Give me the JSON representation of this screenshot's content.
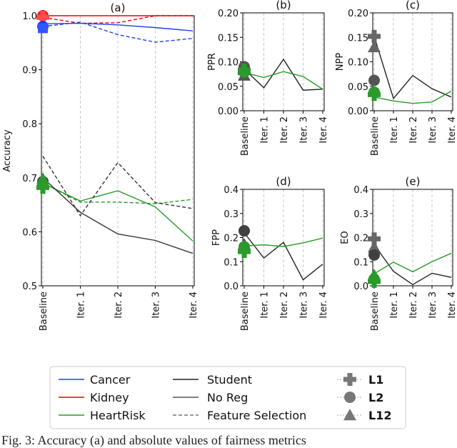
{
  "chart_data": [
    {
      "id": "a",
      "type": "line",
      "title": "(a)",
      "xlabel": "",
      "ylabel": "Accuracy",
      "categories": [
        "Baseline",
        "Iter. 1",
        "Iter. 2",
        "Iter. 3",
        "Iter. 4"
      ],
      "ylim": [
        0.5,
        1.0
      ],
      "yticks": [
        0.5,
        0.6,
        0.7,
        0.8,
        0.9,
        1.0
      ],
      "yticklabels": [
        "0.5",
        "0.6",
        "0.7",
        "0.8",
        "0.9",
        "1.0"
      ],
      "series": [
        {
          "name": "Kidney Student",
          "color": "#ee0000",
          "dash": "solid",
          "values": [
            1.0,
            1.0,
            1.0,
            1.0,
            1.0
          ]
        },
        {
          "name": "Kidney Feature Selection",
          "color": "#ee0000",
          "dash": "dashed",
          "values": [
            0.997,
            0.986,
            0.987,
            1.0,
            1.0
          ]
        },
        {
          "name": "Cancer Student",
          "color": "#2040ee",
          "dash": "solid",
          "values": [
            0.985,
            0.986,
            0.983,
            0.978,
            0.972
          ]
        },
        {
          "name": "Cancer Feature Selection",
          "color": "#2040ee",
          "dash": "dashed",
          "values": [
            0.98,
            0.988,
            0.965,
            0.951,
            0.958
          ]
        },
        {
          "name": "HeartRisk Student",
          "color": "#2a9a2a",
          "dash": "solid",
          "values": [
            0.69,
            0.657,
            0.676,
            0.646,
            0.583
          ]
        },
        {
          "name": "HeartRisk Feature Selection",
          "color": "#2a9a2a",
          "dash": "dashed",
          "values": [
            0.69,
            0.655,
            0.655,
            0.652,
            0.66
          ]
        },
        {
          "name": "No Reg",
          "color": "#333333",
          "dash": "solid",
          "values": [
            0.7,
            0.636,
            0.596,
            0.584,
            0.56
          ]
        },
        {
          "name": "Feature Selection",
          "color": "#333333",
          "dash": "dashed",
          "values": [
            0.74,
            0.63,
            0.728,
            0.654,
            0.643
          ]
        }
      ],
      "markers": [
        {
          "shape": "circle",
          "color": "#ff1a1a",
          "value": 1.0
        },
        {
          "shape": "plus",
          "color": "#ff4d4d",
          "value": 0.997
        },
        {
          "shape": "circle",
          "color": "#1a33ff",
          "value": 0.98
        },
        {
          "shape": "square",
          "color": "#3355ff",
          "value": 0.977
        },
        {
          "shape": "circle",
          "color": "#404040",
          "value": 0.693
        },
        {
          "shape": "triangle",
          "color": "#2f9a2f",
          "value": 0.698
        },
        {
          "shape": "circle",
          "color": "#2a9a2a",
          "value": 0.688
        },
        {
          "shape": "plus",
          "color": "#2a9a2a",
          "value": 0.682
        }
      ]
    },
    {
      "id": "b",
      "type": "line",
      "title": "(b)",
      "ylabel": "PPR",
      "categories": [
        "Baseline",
        "Iter. 1",
        "Iter. 2",
        "Iter. 3",
        "Iter. 4"
      ],
      "ylim": [
        0.0,
        0.2
      ],
      "yticks": [
        0.0,
        0.05,
        0.1,
        0.15,
        0.2
      ],
      "yticklabels": [
        "0.00",
        "0.05",
        "0.10",
        "0.15",
        "0.20"
      ],
      "series": [
        {
          "name": "No Reg",
          "color": "#222222",
          "dash": "solid",
          "values": [
            0.085,
            0.047,
            0.105,
            0.042,
            0.044
          ]
        },
        {
          "name": "HeartRisk",
          "color": "#2a9a2a",
          "dash": "solid",
          "values": [
            0.078,
            0.068,
            0.08,
            0.07,
            0.044
          ]
        }
      ],
      "markers": [
        {
          "shape": "plus",
          "color": "#555555",
          "value": 0.078
        },
        {
          "shape": "circle",
          "color": "#555555",
          "value": 0.09
        },
        {
          "shape": "triangle",
          "color": "#555555",
          "value": 0.072
        },
        {
          "shape": "plus",
          "color": "#2a9a2a",
          "value": 0.083
        },
        {
          "shape": "circle",
          "color": "#2a9a2a",
          "value": 0.079
        }
      ]
    },
    {
      "id": "c",
      "type": "line",
      "title": "(c)",
      "ylabel": "NPP",
      "categories": [
        "Baseline",
        "Iter. 1",
        "Iter. 2",
        "Iter. 3",
        "Iter. 4"
      ],
      "ylim": [
        0.0,
        0.2
      ],
      "yticks": [
        0.0,
        0.05,
        0.1,
        0.15,
        0.2
      ],
      "yticklabels": [
        "0.00",
        "0.05",
        "0.10",
        "0.15",
        "0.20"
      ],
      "series": [
        {
          "name": "No Reg",
          "color": "#222222",
          "dash": "solid",
          "values": [
            0.152,
            0.025,
            0.072,
            0.045,
            0.028
          ]
        },
        {
          "name": "HeartRisk",
          "color": "#2a9a2a",
          "dash": "solid",
          "values": [
            0.028,
            0.02,
            0.015,
            0.018,
            0.04
          ]
        }
      ],
      "markers": [
        {
          "shape": "plus",
          "color": "#666666",
          "value": 0.152
        },
        {
          "shape": "triangle",
          "color": "#666666",
          "value": 0.13
        },
        {
          "shape": "circle",
          "color": "#555555",
          "value": 0.062
        },
        {
          "shape": "plus",
          "color": "#2a9a2a",
          "value": 0.033
        },
        {
          "shape": "circle",
          "color": "#2a9a2a",
          "value": 0.038
        }
      ]
    },
    {
      "id": "d",
      "type": "line",
      "title": "(d)",
      "ylabel": "FPP",
      "categories": [
        "Baseline",
        "Iter. 1",
        "Iter. 2",
        "Iter. 3",
        "Iter. 4"
      ],
      "ylim": [
        0.0,
        0.4
      ],
      "yticks": [
        0.0,
        0.1,
        0.2,
        0.3,
        0.4
      ],
      "yticklabels": [
        "0.0",
        "0.1",
        "0.2",
        "0.3",
        "0.4"
      ],
      "series": [
        {
          "name": "No Reg",
          "color": "#222222",
          "dash": "solid",
          "values": [
            0.22,
            0.115,
            0.18,
            0.025,
            0.09
          ]
        },
        {
          "name": "HeartRisk",
          "color": "#2a9a2a",
          "dash": "solid",
          "values": [
            0.165,
            0.17,
            0.163,
            0.178,
            0.198
          ]
        }
      ],
      "markers": [
        {
          "shape": "circle",
          "color": "#404040",
          "value": 0.228
        },
        {
          "shape": "triangle",
          "color": "#555555",
          "value": 0.172
        },
        {
          "shape": "plus",
          "color": "#2a9a2a",
          "value": 0.142
        },
        {
          "shape": "circle",
          "color": "#2a9a2a",
          "value": 0.162
        }
      ]
    },
    {
      "id": "e",
      "type": "line",
      "title": "(e)",
      "ylabel": "EO",
      "categories": [
        "Baseline",
        "Iter. 1",
        "Iter. 2",
        "Iter. 3",
        "Iter. 4"
      ],
      "ylim": [
        0.0,
        0.4
      ],
      "yticks": [
        0.0,
        0.1,
        0.2,
        0.3,
        0.4
      ],
      "yticklabels": [
        "0.0",
        "0.1",
        "0.2",
        "0.3",
        "0.4"
      ],
      "series": [
        {
          "name": "No Reg",
          "color": "#222222",
          "dash": "solid",
          "values": [
            0.17,
            0.06,
            0.005,
            0.052,
            0.035
          ]
        },
        {
          "name": "HeartRisk",
          "color": "#2a9a2a",
          "dash": "solid",
          "values": [
            0.05,
            0.098,
            0.058,
            0.1,
            0.135
          ]
        }
      ],
      "markers": [
        {
          "shape": "plus",
          "color": "#666666",
          "value": 0.195
        },
        {
          "shape": "triangle",
          "color": "#666666",
          "value": 0.16
        },
        {
          "shape": "circle",
          "color": "#404040",
          "value": 0.128
        },
        {
          "shape": "triangle",
          "color": "#2a9a2a",
          "value": 0.045
        },
        {
          "shape": "circle",
          "color": "#2a9a2a",
          "value": 0.028
        },
        {
          "shape": "plus",
          "color": "#2a9a2a",
          "value": 0.018
        }
      ]
    }
  ],
  "legend": {
    "col1": [
      {
        "label": "Cancer",
        "color": "#2040ee",
        "dash": "solid"
      },
      {
        "label": "Kidney",
        "color": "#ee0000",
        "dash": "solid"
      },
      {
        "label": "HeartRisk",
        "color": "#2a9a2a",
        "dash": "solid"
      }
    ],
    "col2": [
      {
        "label": "Student",
        "color": "#222222",
        "dash": "solid"
      },
      {
        "label": "No Reg",
        "color": "#555555",
        "dash": "solid"
      },
      {
        "label": "Feature Selection",
        "color": "#777777",
        "dash": "dashed"
      }
    ],
    "col3": [
      {
        "label": "L1",
        "marker": "plus",
        "color": "#777777"
      },
      {
        "label": "L2",
        "marker": "circle",
        "color": "#777777"
      },
      {
        "label": "L12",
        "marker": "triangle",
        "color": "#777777"
      }
    ]
  },
  "caption": "Fig. 3: Accuracy (a) and absolute values of fairness metrics"
}
